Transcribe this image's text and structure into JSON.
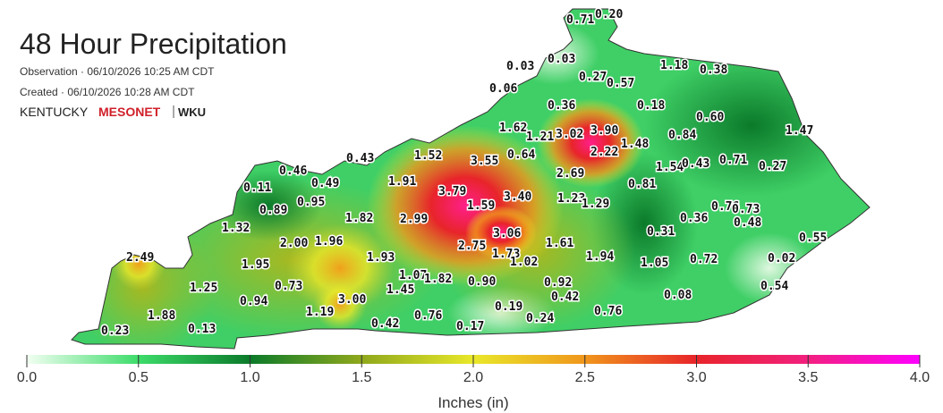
{
  "header": {
    "title": "48 Hour Precipitation",
    "observation": "Observation · 06/10/2026 10:25 AM CDT",
    "created": "Created · 06/10/2026 10:28 AM CDT",
    "logo": {
      "state": "KENTUCKY",
      "network": "MESONET",
      "university": "WKU"
    }
  },
  "stations": [
    {
      "value": 0.71,
      "label": "0.71"
    },
    {
      "value": 0.2,
      "label": "0.20"
    },
    {
      "value": 0.03,
      "label": "0.03"
    },
    {
      "value": 0.03,
      "label": "0.03"
    },
    {
      "value": 0.27,
      "label": "0.27"
    },
    {
      "value": 0.57,
      "label": "0.57"
    },
    {
      "value": 1.18,
      "label": "1.18"
    },
    {
      "value": 0.38,
      "label": "0.38"
    },
    {
      "value": 0.06,
      "label": "0.06"
    },
    {
      "value": 0.36,
      "label": "0.36"
    },
    {
      "value": 0.18,
      "label": "0.18"
    },
    {
      "value": 0.6,
      "label": "0.60"
    },
    {
      "value": 1.62,
      "label": "1.62"
    },
    {
      "value": 1.21,
      "label": "1.21"
    },
    {
      "value": 3.02,
      "label": "3.02"
    },
    {
      "value": 3.9,
      "label": "3.90"
    },
    {
      "value": 1.48,
      "label": "1.48"
    },
    {
      "value": 0.84,
      "label": "0.84"
    },
    {
      "value": 1.47,
      "label": "1.47"
    },
    {
      "value": 0.46,
      "label": "0.46"
    },
    {
      "value": 0.43,
      "label": "0.43"
    },
    {
      "value": 1.52,
      "label": "1.52"
    },
    {
      "value": 3.55,
      "label": "3.55"
    },
    {
      "value": 0.64,
      "label": "0.64"
    },
    {
      "value": 2.22,
      "label": "2.22"
    },
    {
      "value": 2.69,
      "label": "2.69"
    },
    {
      "value": 1.54,
      "label": "1.54"
    },
    {
      "value": 0.43,
      "label": "0.43"
    },
    {
      "value": 0.71,
      "label": "0.71"
    },
    {
      "value": 0.27,
      "label": "0.27"
    },
    {
      "value": 0.11,
      "label": "0.11"
    },
    {
      "value": 0.49,
      "label": "0.49"
    },
    {
      "value": 1.91,
      "label": "1.91"
    },
    {
      "value": 3.79,
      "label": "3.79"
    },
    {
      "value": 3.4,
      "label": "3.40"
    },
    {
      "value": 0.81,
      "label": "0.81"
    },
    {
      "value": 0.89,
      "label": "0.89"
    },
    {
      "value": 0.95,
      "label": "0.95"
    },
    {
      "value": 1.59,
      "label": "1.59"
    },
    {
      "value": 1.23,
      "label": "1.23"
    },
    {
      "value": 1.29,
      "label": "1.29"
    },
    {
      "value": 1.32,
      "label": "1.32"
    },
    {
      "value": 1.82,
      "label": "1.82"
    },
    {
      "value": 2.99,
      "label": "2.99"
    },
    {
      "value": 0.36,
      "label": "0.36"
    },
    {
      "value": 0.76,
      "label": "0.76"
    },
    {
      "value": 0.73,
      "label": "0.73"
    },
    {
      "value": 0.48,
      "label": "0.48"
    },
    {
      "value": 0.31,
      "label": "0.31"
    },
    {
      "value": 3.06,
      "label": "3.06"
    },
    {
      "value": 0.55,
      "label": "0.55"
    },
    {
      "value": 2.0,
      "label": "2.00"
    },
    {
      "value": 1.96,
      "label": "1.96"
    },
    {
      "value": 2.75,
      "label": "2.75"
    },
    {
      "value": 1.73,
      "label": "1.73"
    },
    {
      "value": 1.61,
      "label": "1.61"
    },
    {
      "value": 2.49,
      "label": "2.49"
    },
    {
      "value": 1.95,
      "label": "1.95"
    },
    {
      "value": 1.93,
      "label": "1.93"
    },
    {
      "value": 1.02,
      "label": "1.02"
    },
    {
      "value": 1.94,
      "label": "1.94"
    },
    {
      "value": 1.05,
      "label": "1.05"
    },
    {
      "value": 0.72,
      "label": "0.72"
    },
    {
      "value": 0.02,
      "label": "0.02"
    },
    {
      "value": 1.25,
      "label": "1.25"
    },
    {
      "value": 0.73,
      "label": "0.73"
    },
    {
      "value": 1.07,
      "label": "1.07"
    },
    {
      "value": 1.82,
      "label": "1.82"
    },
    {
      "value": 0.9,
      "label": "0.90"
    },
    {
      "value": 0.92,
      "label": "0.92"
    },
    {
      "value": 0.54,
      "label": "0.54"
    },
    {
      "value": 1.45,
      "label": "1.45"
    },
    {
      "value": 0.94,
      "label": "0.94"
    },
    {
      "value": 3.0,
      "label": "3.00"
    },
    {
      "value": 0.42,
      "label": "0.42"
    },
    {
      "value": 0.08,
      "label": "0.08"
    },
    {
      "value": 1.19,
      "label": "1.19"
    },
    {
      "value": 0.19,
      "label": "0.19"
    },
    {
      "value": 0.76,
      "label": "0.76"
    },
    {
      "value": 0.76,
      "label": "0.76"
    },
    {
      "value": 0.24,
      "label": "0.24"
    },
    {
      "value": 1.88,
      "label": "1.88"
    },
    {
      "value": 0.42,
      "label": "0.42"
    },
    {
      "value": 0.17,
      "label": "0.17"
    },
    {
      "value": 0.23,
      "label": "0.23"
    },
    {
      "value": 0.13,
      "label": "0.13"
    }
  ],
  "colorbar": {
    "label": "Inches (in)",
    "lim": [
      0,
      4
    ],
    "ticks": [
      {
        "value": 0,
        "label": "0.0"
      },
      0.5,
      {
        "value": 1,
        "label": "1.0"
      },
      1.5,
      {
        "value": 2,
        "label": "2.0"
      },
      2.5,
      {
        "value": 3,
        "label": "3.0"
      },
      3.5,
      {
        "value": 4,
        "label": "4.0"
      }
    ],
    "colors": [
      "#f2fff2",
      "#3ddc6a",
      "#0b7a2a",
      "#8fa81c",
      "#e9e82a",
      "#f0961c",
      "#e8242a",
      "#f2207f",
      "#ff00ff"
    ]
  }
}
